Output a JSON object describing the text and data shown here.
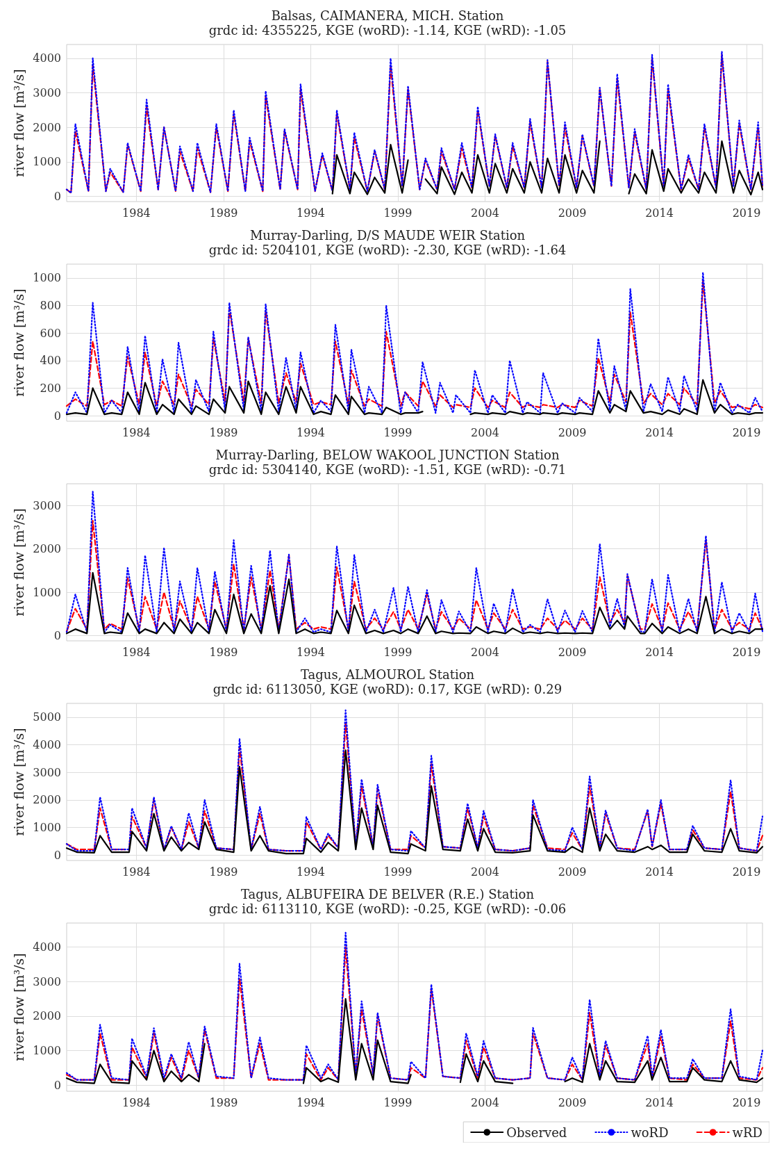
{
  "chart_data": [
    {
      "type": "line",
      "title": "Balsas, CAIMANERA, MICH. Station",
      "subtitle": "grdc id: 4355225, KGE (woRD): -1.14, KGE (wRD): -1.05",
      "ylabel": "river flow [m³/s]",
      "grid": true,
      "legend": false,
      "marker": "none",
      "xlim": [
        "1980-01",
        "2019-12"
      ],
      "xticks": [
        "1984",
        "1989",
        "1994",
        "1999",
        "2004",
        "2009",
        "2014",
        "2019"
      ],
      "ylim": [
        -150,
        4400
      ],
      "yticks": [
        0,
        1000,
        2000,
        3000,
        4000
      ],
      "x": [
        "1980-01",
        "1980-04",
        "1980-07",
        "1981-04",
        "1981-07",
        "1982-04",
        "1982-07",
        "1983-04",
        "1983-07",
        "1984-04",
        "1984-08",
        "1985-04",
        "1985-08",
        "1986-04",
        "1986-07",
        "1987-04",
        "1987-07",
        "1988-04",
        "1988-08",
        "1989-04",
        "1989-08",
        "1990-04",
        "1990-07",
        "1991-04",
        "1991-06",
        "1992-04",
        "1992-07",
        "1993-04",
        "1993-06",
        "1994-04",
        "1994-09",
        "1995-04",
        "1995-07",
        "1996-04",
        "1996-07",
        "1997-04",
        "1997-09",
        "1998-04",
        "1998-08",
        "1999-04",
        "1999-08",
        "2000-04",
        "2000-08",
        "2001-04",
        "2001-07",
        "2002-04",
        "2002-09",
        "2003-04",
        "2003-08",
        "2004-04",
        "2004-08",
        "2005-04",
        "2005-08",
        "2006-04",
        "2006-08",
        "2007-04",
        "2007-08",
        "2008-04",
        "2008-08",
        "2009-04",
        "2009-08",
        "2010-04",
        "2010-08",
        "2011-04",
        "2011-08",
        "2012-04",
        "2012-08",
        "2013-04",
        "2013-08",
        "2014-04",
        "2014-07",
        "2015-04",
        "2015-09",
        "2016-04",
        "2016-08",
        "2017-04",
        "2017-08",
        "2018-04",
        "2018-08",
        "2019-04",
        "2019-09",
        "2019-12"
      ],
      "series": [
        {
          "color": "#000000",
          "line_style": "solid",
          "values": [
            null,
            null,
            null,
            null,
            null,
            null,
            null,
            null,
            null,
            null,
            null,
            null,
            null,
            null,
            null,
            null,
            null,
            null,
            null,
            null,
            null,
            null,
            null,
            null,
            null,
            null,
            null,
            null,
            null,
            null,
            null,
            80,
            1200,
            80,
            700,
            60,
            550,
            100,
            1500,
            100,
            1050,
            null,
            500,
            80,
            850,
            60,
            700,
            100,
            1200,
            100,
            950,
            100,
            800,
            100,
            1000,
            100,
            1100,
            100,
            1200,
            100,
            750,
            100,
            1600,
            null,
            null,
            80,
            650,
            80,
            1350,
            150,
            800,
            100,
            500,
            100,
            700,
            100,
            1600,
            100,
            750,
            50,
            700,
            200
          ]
        },
        {
          "color": "#0000ff",
          "line_style": "dotted",
          "values": [
            200,
            100,
            2100,
            150,
            4000,
            150,
            800,
            120,
            1550,
            150,
            2800,
            200,
            2000,
            150,
            1450,
            150,
            1550,
            120,
            2100,
            150,
            2500,
            150,
            1700,
            150,
            3050,
            200,
            1950,
            200,
            3250,
            150,
            1250,
            150,
            2500,
            200,
            1850,
            150,
            1350,
            200,
            4000,
            300,
            3200,
            200,
            1100,
            200,
            1400,
            200,
            1550,
            250,
            2600,
            300,
            1800,
            250,
            1550,
            250,
            2250,
            250,
            3950,
            300,
            2150,
            250,
            1800,
            300,
            3150,
            300,
            3550,
            250,
            1950,
            200,
            4100,
            300,
            3250,
            200,
            1200,
            200,
            2100,
            250,
            4200,
            300,
            2200,
            200,
            2150,
            300
          ]
        },
        {
          "color": "#ff0000",
          "line_style": "dashed",
          "values": [
            200,
            100,
            1900,
            150,
            3800,
            150,
            700,
            120,
            1500,
            150,
            2600,
            200,
            2000,
            150,
            1300,
            150,
            1400,
            120,
            2000,
            150,
            2400,
            150,
            1600,
            150,
            2900,
            200,
            1900,
            200,
            3100,
            150,
            1200,
            150,
            2400,
            200,
            1700,
            150,
            1300,
            200,
            3800,
            300,
            3100,
            200,
            1050,
            200,
            1300,
            200,
            1400,
            250,
            2500,
            300,
            1750,
            250,
            1450,
            250,
            2150,
            250,
            3900,
            300,
            2000,
            250,
            1750,
            300,
            3100,
            300,
            3400,
            250,
            1850,
            200,
            4000,
            300,
            3100,
            200,
            1100,
            200,
            2000,
            250,
            4100,
            300,
            2100,
            200,
            2000,
            300
          ]
        }
      ]
    },
    {
      "type": "line",
      "title": "Murray-Darling, D/S MAUDE WEIR Station",
      "subtitle": "grdc id: 5204101, KGE (woRD): -2.30, KGE (wRD): -1.64",
      "ylabel": "river flow [m³/s]",
      "grid": true,
      "legend": false,
      "marker": "none",
      "xlim": [
        "1980-01",
        "2019-12"
      ],
      "xticks": [
        "1984",
        "1989",
        "1994",
        "1999",
        "2004",
        "2009",
        "2014",
        "2019"
      ],
      "ylim": [
        -40,
        1100
      ],
      "yticks": [
        0,
        200,
        400,
        600,
        800,
        1000
      ],
      "x": [
        "1980-01",
        "1980-07",
        "1981-03",
        "1981-07",
        "1982-03",
        "1982-08",
        "1983-03",
        "1983-07",
        "1984-03",
        "1984-07",
        "1985-03",
        "1985-07",
        "1986-03",
        "1986-06",
        "1987-03",
        "1987-06",
        "1988-03",
        "1988-06",
        "1989-02",
        "1989-05",
        "1990-03",
        "1990-06",
        "1991-03",
        "1991-06",
        "1992-03",
        "1992-08",
        "1993-03",
        "1993-06",
        "1994-03",
        "1994-08",
        "1995-03",
        "1995-06",
        "1996-03",
        "1996-05",
        "1997-02",
        "1997-05",
        "1998-02",
        "1998-05",
        "1999-03",
        "1999-06",
        "2000-03",
        "2000-06",
        "2001-03",
        "2001-06",
        "2002-03",
        "2002-05",
        "2003-03",
        "2003-06",
        "2004-03",
        "2004-06",
        "2005-03",
        "2005-06",
        "2006-03",
        "2006-06",
        "2007-03",
        "2007-05",
        "2008-03",
        "2008-06",
        "2009-03",
        "2009-06",
        "2010-03",
        "2010-07",
        "2011-03",
        "2011-06",
        "2012-02",
        "2012-05",
        "2013-02",
        "2013-07",
        "2014-03",
        "2014-07",
        "2015-03",
        "2015-06",
        "2016-03",
        "2016-07",
        "2017-03",
        "2017-07",
        "2018-03",
        "2018-07",
        "2019-03",
        "2019-07",
        "2019-12"
      ],
      "series": [
        {
          "color": "#000000",
          "line_style": "solid",
          "values": [
            10,
            20,
            10,
            200,
            10,
            20,
            10,
            170,
            10,
            240,
            10,
            80,
            10,
            120,
            10,
            70,
            10,
            120,
            20,
            210,
            20,
            250,
            10,
            170,
            10,
            210,
            20,
            210,
            10,
            30,
            10,
            150,
            10,
            140,
            10,
            20,
            10,
            60,
            10,
            20,
            20,
            30,
            null,
            null,
            null,
            null,
            10,
            20,
            10,
            20,
            10,
            30,
            10,
            20,
            10,
            20,
            10,
            20,
            10,
            20,
            10,
            180,
            20,
            80,
            30,
            180,
            20,
            30,
            10,
            40,
            10,
            50,
            10,
            260,
            20,
            80,
            10,
            20,
            10,
            20,
            20
          ]
        },
        {
          "color": "#0000ff",
          "line_style": "dotted",
          "values": [
            20,
            170,
            20,
            820,
            20,
            110,
            20,
            500,
            20,
            580,
            20,
            410,
            20,
            530,
            20,
            260,
            30,
            610,
            40,
            820,
            40,
            570,
            30,
            810,
            30,
            420,
            40,
            460,
            20,
            110,
            30,
            660,
            30,
            480,
            20,
            210,
            20,
            800,
            20,
            170,
            20,
            390,
            20,
            240,
            20,
            150,
            20,
            330,
            20,
            150,
            20,
            400,
            20,
            100,
            20,
            310,
            20,
            90,
            20,
            130,
            30,
            560,
            40,
            360,
            40,
            920,
            30,
            230,
            30,
            280,
            30,
            290,
            30,
            1040,
            30,
            240,
            20,
            80,
            20,
            130,
            30
          ]
        },
        {
          "color": "#ff0000",
          "line_style": "dashed",
          "values": [
            70,
            120,
            70,
            540,
            80,
            110,
            70,
            430,
            80,
            460,
            70,
            250,
            80,
            300,
            70,
            190,
            80,
            560,
            100,
            780,
            100,
            560,
            90,
            760,
            90,
            310,
            100,
            380,
            80,
            100,
            80,
            540,
            80,
            330,
            70,
            120,
            70,
            610,
            70,
            170,
            70,
            250,
            70,
            150,
            60,
            80,
            60,
            200,
            60,
            110,
            60,
            170,
            60,
            80,
            60,
            80,
            60,
            80,
            60,
            110,
            70,
            420,
            100,
            300,
            100,
            750,
            90,
            160,
            80,
            160,
            80,
            200,
            80,
            980,
            90,
            180,
            60,
            70,
            50,
            80,
            60
          ]
        }
      ]
    },
    {
      "type": "line",
      "title": "Murray-Darling, BELOW WAKOOL JUNCTION Station",
      "subtitle": "grdc id: 5304140, KGE (woRD): -1.51, KGE (wRD): -0.71",
      "ylabel": "river flow [m³/s]",
      "grid": true,
      "legend": false,
      "marker": "none",
      "xlim": [
        "1980-01",
        "2019-12"
      ],
      "xticks": [
        "1984",
        "1989",
        "1994",
        "1999",
        "2004",
        "2009",
        "2014",
        "2019"
      ],
      "ylim": [
        -120,
        3500
      ],
      "yticks": [
        0,
        1000,
        2000,
        3000
      ],
      "x": [
        "1980-01",
        "1980-07",
        "1981-03",
        "1981-07",
        "1982-03",
        "1982-07",
        "1983-03",
        "1983-07",
        "1984-03",
        "1984-07",
        "1985-03",
        "1985-08",
        "1986-03",
        "1986-07",
        "1987-03",
        "1987-07",
        "1988-03",
        "1988-07",
        "1989-03",
        "1989-08",
        "1990-03",
        "1990-08",
        "1991-03",
        "1991-09",
        "1992-03",
        "1992-10",
        "1993-03",
        "1993-09",
        "1994-03",
        "1994-08",
        "1995-03",
        "1995-07",
        "1996-03",
        "1996-07",
        "1997-03",
        "1997-09",
        "1998-03",
        "1998-10",
        "1999-03",
        "1999-08",
        "2000-03",
        "2000-09",
        "2001-03",
        "2001-07",
        "2002-03",
        "2002-07",
        "2003-03",
        "2003-07",
        "2004-03",
        "2004-07",
        "2005-03",
        "2005-08",
        "2006-03",
        "2006-08",
        "2007-03",
        "2007-08",
        "2008-03",
        "2008-08",
        "2009-03",
        "2009-08",
        "2010-03",
        "2010-08",
        "2011-03",
        "2011-08",
        "2012-01",
        "2012-03",
        "2012-12",
        "2013-03",
        "2013-08",
        "2014-03",
        "2014-07",
        "2015-03",
        "2015-09",
        "2016-03",
        "2016-09",
        "2017-03",
        "2017-08",
        "2018-03",
        "2018-08",
        "2019-03",
        "2019-07",
        "2019-12"
      ],
      "series": [
        {
          "color": "#000000",
          "line_style": "solid",
          "values": [
            50,
            150,
            50,
            1450,
            50,
            80,
            50,
            520,
            50,
            150,
            50,
            300,
            50,
            380,
            50,
            300,
            50,
            600,
            50,
            950,
            50,
            500,
            50,
            1150,
            50,
            1300,
            50,
            150,
            50,
            80,
            50,
            580,
            50,
            700,
            50,
            120,
            50,
            120,
            50,
            150,
            50,
            450,
            50,
            100,
            50,
            60,
            50,
            200,
            50,
            100,
            50,
            170,
            50,
            80,
            50,
            80,
            50,
            60,
            50,
            60,
            50,
            650,
            150,
            350,
            150,
            450,
            50,
            50,
            280,
            50,
            200,
            50,
            150,
            50,
            900,
            50,
            150,
            50,
            100,
            50,
            150,
            150
          ]
        },
        {
          "color": "#0000ff",
          "line_style": "dotted",
          "values": [
            80,
            950,
            80,
            3320,
            80,
            250,
            80,
            1560,
            80,
            1850,
            80,
            2030,
            80,
            1250,
            80,
            1560,
            80,
            1480,
            80,
            2200,
            80,
            1610,
            80,
            1960,
            80,
            1870,
            80,
            400,
            80,
            150,
            80,
            2060,
            80,
            1860,
            80,
            600,
            80,
            1100,
            80,
            1130,
            80,
            1050,
            80,
            820,
            80,
            560,
            80,
            1560,
            80,
            740,
            80,
            1080,
            80,
            250,
            80,
            840,
            80,
            580,
            80,
            570,
            80,
            2110,
            200,
            850,
            200,
            1420,
            100,
            80,
            1300,
            80,
            1400,
            80,
            850,
            80,
            2300,
            80,
            1230,
            80,
            520,
            80,
            970,
            100
          ]
        },
        {
          "color": "#ff0000",
          "line_style": "dashed",
          "values": [
            100,
            620,
            150,
            2650,
            150,
            280,
            150,
            1330,
            150,
            900,
            150,
            1000,
            150,
            800,
            150,
            900,
            150,
            1250,
            150,
            1650,
            150,
            1350,
            150,
            1500,
            150,
            1850,
            150,
            300,
            150,
            200,
            150,
            1580,
            150,
            1250,
            150,
            400,
            150,
            550,
            150,
            600,
            150,
            950,
            150,
            550,
            150,
            400,
            150,
            820,
            150,
            520,
            150,
            600,
            150,
            200,
            150,
            400,
            150,
            350,
            150,
            400,
            150,
            1350,
            300,
            600,
            300,
            1380,
            150,
            150,
            730,
            150,
            750,
            150,
            550,
            150,
            2200,
            150,
            600,
            150,
            300,
            150,
            520,
            150
          ]
        }
      ]
    },
    {
      "type": "line",
      "title": "Tagus, ALMOUROL Station",
      "subtitle": "grdc id: 6113050, KGE (woRD): 0.17, KGE (wRD): 0.29",
      "ylabel": "river flow [m³/s]",
      "grid": true,
      "legend": false,
      "marker": "none",
      "xlim": [
        "1980-01",
        "2019-12"
      ],
      "xticks": [
        "1984",
        "1989",
        "1994",
        "1999",
        "2004",
        "2009",
        "2014",
        "2019"
      ],
      "ylim": [
        -200,
        5500
      ],
      "yticks": [
        0,
        1000,
        2000,
        3000,
        4000,
        5000
      ],
      "x": [
        "1980-01",
        "1980-08",
        "1981-08",
        "1981-12",
        "1982-08",
        "1983-08",
        "1983-10",
        "1984-08",
        "1985-01",
        "1985-08",
        "1986-01",
        "1986-08",
        "1987-01",
        "1987-08",
        "1987-12",
        "1988-08",
        "1989-08",
        "1989-12",
        "1990-08",
        "1991-02",
        "1991-08",
        "1992-08",
        "1993-08",
        "1993-10",
        "1994-08",
        "1995-01",
        "1995-08",
        "1996-01",
        "1996-08",
        "1996-12",
        "1997-08",
        "1997-11",
        "1998-08",
        "1999-08",
        "1999-10",
        "2000-08",
        "2000-12",
        "2001-08",
        "2002-08",
        "2003-01",
        "2003-08",
        "2003-12",
        "2004-08",
        "2005-08",
        "2006-08",
        "2006-10",
        "2007-08",
        "2008-08",
        "2009-01",
        "2009-08",
        "2010-01",
        "2010-08",
        "2010-12",
        "2011-08",
        "2012-08",
        "2013-05",
        "2013-08",
        "2014-02",
        "2014-08",
        "2015-08",
        "2015-12",
        "2016-08",
        "2017-08",
        "2018-02",
        "2018-08",
        "2019-08",
        "2019-12"
      ],
      "series": [
        {
          "color": "#000000",
          "line_style": "solid",
          "values": [
            250,
            100,
            80,
            700,
            100,
            100,
            850,
            150,
            1500,
            150,
            650,
            150,
            450,
            200,
            1200,
            200,
            100,
            3200,
            150,
            700,
            150,
            50,
            50,
            600,
            100,
            450,
            150,
            3800,
            200,
            1700,
            200,
            1800,
            100,
            50,
            400,
            150,
            2500,
            200,
            150,
            1300,
            150,
            950,
            100,
            80,
            150,
            1450,
            150,
            100,
            300,
            100,
            1700,
            150,
            750,
            150,
            100,
            300,
            200,
            350,
            100,
            100,
            750,
            150,
            100,
            950,
            150,
            80,
            300
          ]
        },
        {
          "color": "#0000ff",
          "line_style": "dotted",
          "values": [
            400,
            150,
            150,
            2100,
            200,
            200,
            1700,
            250,
            2100,
            200,
            1050,
            200,
            1520,
            250,
            2000,
            250,
            200,
            4220,
            200,
            1750,
            200,
            150,
            150,
            1380,
            200,
            780,
            250,
            5250,
            300,
            2750,
            300,
            2550,
            200,
            150,
            870,
            250,
            3600,
            300,
            250,
            1870,
            250,
            1600,
            200,
            150,
            250,
            2000,
            200,
            150,
            1000,
            200,
            2850,
            250,
            1620,
            250,
            150,
            1660,
            300,
            2000,
            200,
            200,
            1060,
            250,
            200,
            2720,
            250,
            150,
            1400
          ]
        },
        {
          "color": "#ff0000",
          "line_style": "dashed",
          "values": [
            400,
            200,
            200,
            1700,
            200,
            200,
            1400,
            250,
            2000,
            200,
            1000,
            200,
            1200,
            250,
            1600,
            250,
            200,
            3900,
            200,
            1500,
            200,
            150,
            150,
            1200,
            200,
            700,
            250,
            4800,
            300,
            2500,
            300,
            2400,
            200,
            200,
            700,
            250,
            3300,
            300,
            250,
            1700,
            250,
            1400,
            200,
            150,
            250,
            1800,
            250,
            200,
            800,
            200,
            2500,
            250,
            1500,
            250,
            200,
            1600,
            300,
            1850,
            200,
            200,
            900,
            250,
            200,
            2300,
            250,
            150,
            700
          ]
        }
      ]
    },
    {
      "type": "line",
      "title": "Tagus, ALBUFEIRA DE BELVER (R.E.) Station",
      "subtitle": "grdc id: 6113110, KGE (woRD): -0.25, KGE (wRD): -0.06",
      "ylabel": "river flow [m³/s]",
      "grid": true,
      "legend": "bottom right",
      "marker": "none",
      "xlim": [
        "1980-01",
        "2019-12"
      ],
      "xticks": [
        "1984",
        "1989",
        "1994",
        "1999",
        "2004",
        "2009",
        "2014",
        "2019"
      ],
      "ylim": [
        -180,
        4700
      ],
      "yticks": [
        0,
        1000,
        2000,
        3000,
        4000
      ],
      "x": [
        "1980-01",
        "1980-08",
        "1981-08",
        "1981-12",
        "1982-08",
        "1983-08",
        "1983-10",
        "1984-08",
        "1985-01",
        "1985-08",
        "1986-01",
        "1986-08",
        "1987-01",
        "1987-08",
        "1987-12",
        "1988-08",
        "1989-08",
        "1989-12",
        "1990-08",
        "1991-02",
        "1991-08",
        "1992-08",
        "1993-08",
        "1993-10",
        "1994-08",
        "1995-01",
        "1995-08",
        "1996-01",
        "1996-08",
        "1996-12",
        "1997-08",
        "1997-11",
        "1998-08",
        "1999-08",
        "1999-10",
        "2000-08",
        "2000-12",
        "2001-08",
        "2002-08",
        "2002-12",
        "2003-08",
        "2003-12",
        "2004-08",
        "2005-08",
        "2006-08",
        "2006-10",
        "2007-08",
        "2008-08",
        "2009-01",
        "2009-08",
        "2010-01",
        "2010-08",
        "2010-12",
        "2011-08",
        "2012-08",
        "2013-05",
        "2013-08",
        "2014-02",
        "2014-08",
        "2015-08",
        "2015-12",
        "2016-08",
        "2017-08",
        "2018-02",
        "2018-08",
        "2019-08",
        "2019-12"
      ],
      "series": [
        {
          "name": "Observed",
          "color": "#000000",
          "line_style": "solid",
          "values": [
            200,
            80,
            50,
            600,
            80,
            50,
            700,
            150,
            1000,
            100,
            400,
            100,
            300,
            100,
            1200,
            null,
            null,
            null,
            null,
            null,
            null,
            null,
            50,
            500,
            100,
            200,
            80,
            2500,
            150,
            1200,
            150,
            1300,
            100,
            50,
            300,
            null,
            null,
            null,
            80,
            900,
            100,
            700,
            100,
            50,
            null,
            null,
            null,
            100,
            200,
            80,
            1200,
            150,
            700,
            100,
            80,
            700,
            150,
            800,
            100,
            100,
            500,
            150,
            100,
            700,
            150,
            80,
            200
          ]
        },
        {
          "name": "woRD",
          "color": "#0000ff",
          "line_style": "dotted",
          "values": [
            350,
            150,
            150,
            1750,
            200,
            150,
            1350,
            250,
            1650,
            200,
            900,
            200,
            1250,
            200,
            1700,
            250,
            200,
            3520,
            200,
            1380,
            200,
            150,
            150,
            1150,
            200,
            600,
            150,
            4420,
            300,
            2430,
            300,
            2100,
            200,
            150,
            680,
            200,
            2920,
            250,
            200,
            1500,
            250,
            1280,
            200,
            150,
            200,
            1660,
            200,
            150,
            800,
            150,
            2480,
            250,
            1280,
            200,
            150,
            1430,
            250,
            1600,
            200,
            200,
            750,
            200,
            200,
            2200,
            250,
            150,
            1000
          ]
        },
        {
          "name": "wRD",
          "color": "#ff0000",
          "line_style": "dashed",
          "values": [
            300,
            150,
            150,
            1500,
            150,
            150,
            1100,
            200,
            1500,
            150,
            800,
            150,
            1000,
            200,
            1600,
            200,
            200,
            3100,
            200,
            1200,
            150,
            150,
            150,
            900,
            150,
            500,
            150,
            4000,
            300,
            2200,
            300,
            2000,
            200,
            150,
            500,
            200,
            2800,
            250,
            200,
            1300,
            200,
            1100,
            200,
            150,
            200,
            1500,
            200,
            150,
            600,
            150,
            2100,
            200,
            1150,
            200,
            150,
            1200,
            200,
            1400,
            200,
            150,
            600,
            200,
            200,
            1850,
            200,
            150,
            500
          ]
        }
      ]
    }
  ]
}
